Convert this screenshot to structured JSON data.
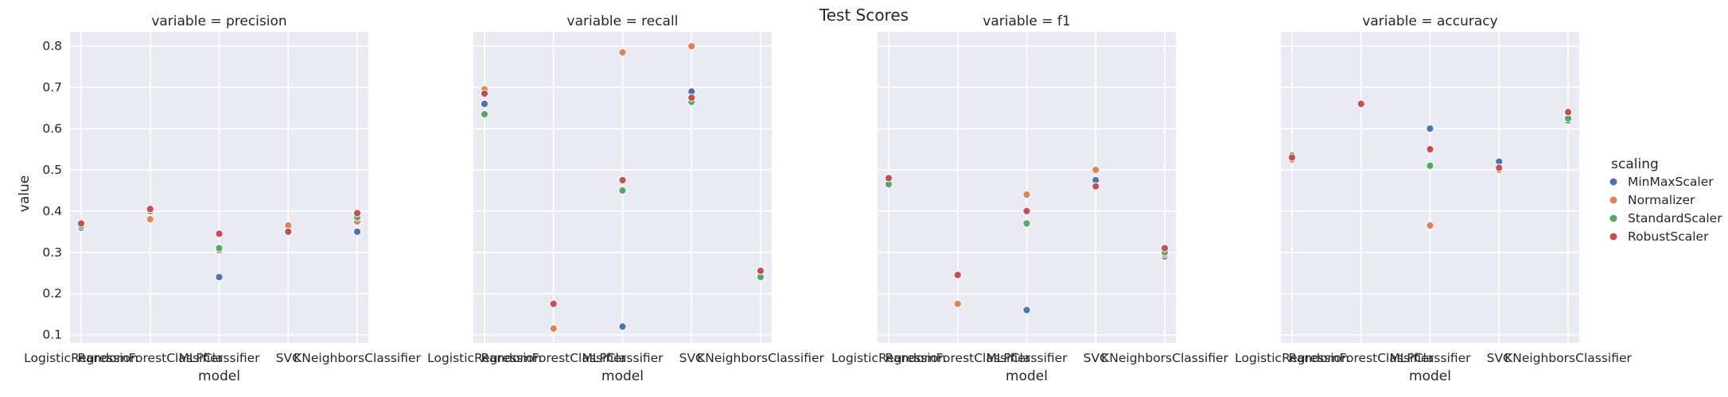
{
  "chart_data": {
    "type": "scatter",
    "title": "Test Scores",
    "xlabel": "model",
    "ylabel": "value",
    "ylim": [
      0.08,
      0.835
    ],
    "yticks": [
      "0.1",
      "0.2",
      "0.3",
      "0.4",
      "0.5",
      "0.6",
      "0.7",
      "0.8"
    ],
    "grid": true,
    "legend_position": "right",
    "legend_title": "scaling",
    "categories": [
      "LogisticRegression",
      "RandomForestClassifier",
      "MLPClassifier",
      "SVC",
      "KNeighborsClassifier"
    ],
    "series_styles": [
      {
        "name": "MinMaxScaler",
        "color": "#4c72b0"
      },
      {
        "name": "Normalizer",
        "color": "#dd8452"
      },
      {
        "name": "StandardScaler",
        "color": "#55a868"
      },
      {
        "name": "RobustScaler",
        "color": "#c44e52"
      }
    ],
    "facets": [
      {
        "title": "variable = precision",
        "series": [
          {
            "name": "MinMaxScaler",
            "values": [
              0.36,
              0.4,
              0.24,
              0.35,
              0.35
            ]
          },
          {
            "name": "Normalizer",
            "values": [
              0.365,
              0.38,
              0.305,
              0.365,
              0.375
            ]
          },
          {
            "name": "StandardScaler",
            "values": [
              0.365,
              0.4,
              0.31,
              0.35,
              0.385
            ]
          },
          {
            "name": "RobustScaler",
            "values": [
              0.37,
              0.405,
              0.345,
              0.35,
              0.395
            ]
          }
        ]
      },
      {
        "title": "variable = recall",
        "series": [
          {
            "name": "MinMaxScaler",
            "values": [
              0.66,
              0.175,
              0.12,
              0.69,
              0.245
            ]
          },
          {
            "name": "Normalizer",
            "values": [
              0.695,
              0.115,
              0.785,
              0.8,
              0.245
            ]
          },
          {
            "name": "StandardScaler",
            "values": [
              0.635,
              0.175,
              0.45,
              0.665,
              0.24
            ]
          },
          {
            "name": "RobustScaler",
            "values": [
              0.685,
              0.175,
              0.475,
              0.675,
              0.255
            ]
          }
        ]
      },
      {
        "title": "variable = f1",
        "series": [
          {
            "name": "MinMaxScaler",
            "values": [
              0.475,
              0.245,
              0.16,
              0.475,
              0.29
            ]
          },
          {
            "name": "Normalizer",
            "values": [
              0.48,
              0.175,
              0.44,
              0.5,
              0.295
            ]
          },
          {
            "name": "StandardScaler",
            "values": [
              0.465,
              0.245,
              0.37,
              0.46,
              0.3
            ]
          },
          {
            "name": "RobustScaler",
            "values": [
              0.48,
              0.245,
              0.4,
              0.46,
              0.31
            ]
          }
        ]
      },
      {
        "title": "variable = accuracy",
        "series": [
          {
            "name": "MinMaxScaler",
            "values": [
              0.53,
              0.66,
              0.6,
              0.52,
              0.62
            ]
          },
          {
            "name": "Normalizer",
            "values": [
              0.525,
              0.66,
              0.365,
              0.5,
              0.635
            ]
          },
          {
            "name": "StandardScaler",
            "values": [
              0.535,
              0.66,
              0.51,
              0.505,
              0.625
            ]
          },
          {
            "name": "RobustScaler",
            "values": [
              0.53,
              0.66,
              0.55,
              0.505,
              0.64
            ]
          }
        ]
      }
    ]
  }
}
